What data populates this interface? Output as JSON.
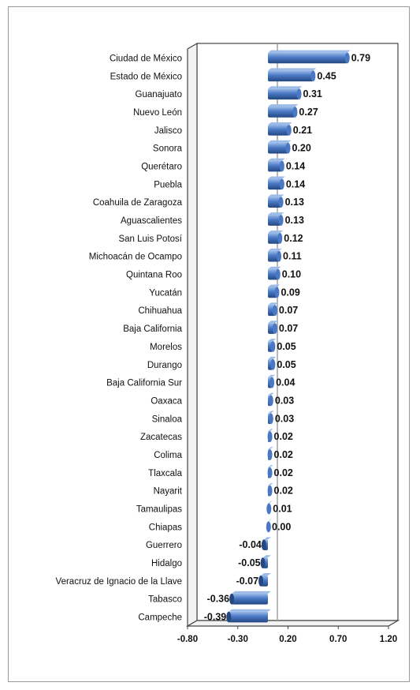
{
  "chart_data": {
    "type": "bar",
    "orientation": "horizontal",
    "title": "",
    "xlabel": "",
    "ylabel": "",
    "xlim": [
      -0.8,
      1.2
    ],
    "ticks": [
      "-0.80",
      "-0.30",
      "0.20",
      "0.70",
      "1.20"
    ],
    "tick_values": [
      -0.8,
      -0.3,
      0.2,
      0.7,
      1.2
    ],
    "grid": false,
    "legend": "none",
    "bar_color": "#4a78c4",
    "bar_dark": "#24477f",
    "bar_light": "#9cbbe8",
    "categories": [
      "Ciudad de México",
      "Estado de México",
      "Guanajuato",
      "Nuevo León",
      "Jalisco",
      "Sonora",
      "Querétaro",
      "Puebla",
      "Coahuila de Zaragoza",
      "Aguascalientes",
      "San Luis Potosí",
      "Michoacán de Ocampo",
      "Quintana Roo",
      "Yucatán",
      "Chihuahua",
      "Baja California",
      "Morelos",
      "Durango",
      "Baja California Sur",
      "Oaxaca",
      "Sinaloa",
      "Zacatecas",
      "Colima",
      "Tlaxcala",
      "Nayarit",
      "Tamaulipas",
      "Chiapas",
      "Guerrero",
      "Hidalgo",
      "Veracruz de Ignacio de la Llave",
      "Tabasco",
      "Campeche"
    ],
    "values": [
      0.79,
      0.45,
      0.31,
      0.27,
      0.21,
      0.2,
      0.14,
      0.14,
      0.13,
      0.13,
      0.12,
      0.11,
      0.1,
      0.09,
      0.07,
      0.07,
      0.05,
      0.05,
      0.04,
      0.03,
      0.03,
      0.02,
      0.02,
      0.02,
      0.02,
      0.01,
      0.0,
      -0.04,
      -0.05,
      -0.07,
      -0.36,
      -0.39
    ],
    "value_labels": [
      "0.79",
      "0.45",
      "0.31",
      "0.27",
      "0.21",
      "0.20",
      "0.14",
      "0.14",
      "0.13",
      "0.13",
      "0.12",
      "0.11",
      "0.10",
      "0.09",
      "0.07",
      "0.07",
      "0.05",
      "0.05",
      "0.04",
      "0.03",
      "0.03",
      "0.02",
      "0.02",
      "0.02",
      "0.02",
      "0.01",
      "0.00",
      "-0.04",
      "-0.05",
      "-0.07",
      "-0.36",
      "-0.39"
    ]
  }
}
